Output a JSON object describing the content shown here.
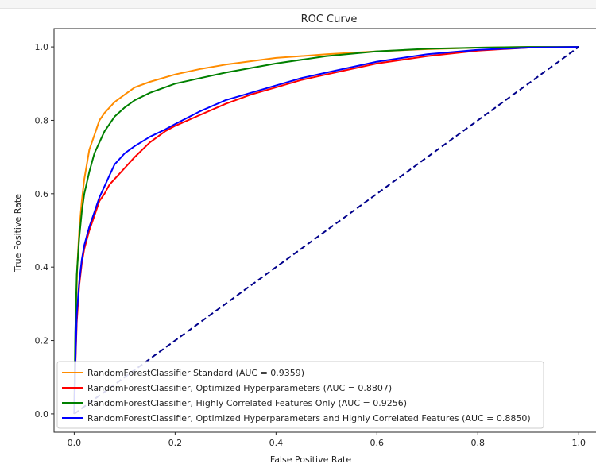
{
  "chart_data": {
    "type": "line",
    "title": "ROC Curve",
    "xlabel": "False Positive Rate",
    "ylabel": "True Positive Rate",
    "xlim": [
      -0.04,
      1.05
    ],
    "ylim": [
      -0.05,
      1.05
    ],
    "xticks": [
      "0.0",
      "0.2",
      "0.4",
      "0.6",
      "0.8",
      "1.0"
    ],
    "yticks": [
      "0.0",
      "0.2",
      "0.4",
      "0.6",
      "0.8",
      "1.0"
    ],
    "grid": false,
    "legend_position": "lower-left",
    "series": [
      {
        "name": "RandomForestClassifier Standard (AUC = 0.9359)",
        "color": "#ff8c00",
        "style": "solid",
        "x": [
          0,
          0.003,
          0.006,
          0.01,
          0.015,
          0.02,
          0.03,
          0.04,
          0.05,
          0.06,
          0.08,
          0.1,
          0.12,
          0.15,
          0.2,
          0.25,
          0.3,
          0.4,
          0.5,
          0.6,
          0.7,
          0.8,
          0.9,
          1.0
        ],
        "y": [
          0,
          0.25,
          0.4,
          0.5,
          0.58,
          0.64,
          0.72,
          0.76,
          0.8,
          0.82,
          0.85,
          0.87,
          0.89,
          0.905,
          0.925,
          0.94,
          0.952,
          0.97,
          0.98,
          0.988,
          0.994,
          0.998,
          1.0,
          1.0
        ]
      },
      {
        "name": "RandomForestClassifier, Optimized Hyperparameters (AUC = 0.8807)",
        "color": "#ff0000",
        "style": "solid",
        "x": [
          0,
          0.002,
          0.005,
          0.01,
          0.015,
          0.02,
          0.03,
          0.04,
          0.05,
          0.06,
          0.07,
          0.08,
          0.1,
          0.12,
          0.15,
          0.18,
          0.2,
          0.25,
          0.3,
          0.35,
          0.4,
          0.45,
          0.5,
          0.6,
          0.7,
          0.8,
          0.9,
          1.0
        ],
        "y": [
          0,
          0.12,
          0.25,
          0.35,
          0.41,
          0.45,
          0.5,
          0.54,
          0.58,
          0.6,
          0.625,
          0.64,
          0.67,
          0.7,
          0.74,
          0.77,
          0.785,
          0.815,
          0.845,
          0.87,
          0.89,
          0.91,
          0.925,
          0.955,
          0.975,
          0.99,
          0.998,
          1.0
        ]
      },
      {
        "name": "RandomForestClassifier, Highly Correlated Features Only (AUC = 0.9256)",
        "color": "#008000",
        "style": "solid",
        "x": [
          0,
          0.002,
          0.005,
          0.01,
          0.015,
          0.02,
          0.03,
          0.04,
          0.05,
          0.06,
          0.08,
          0.1,
          0.12,
          0.15,
          0.2,
          0.25,
          0.3,
          0.4,
          0.5,
          0.6,
          0.7,
          0.8,
          0.9,
          1.0
        ],
        "y": [
          0,
          0.22,
          0.38,
          0.48,
          0.55,
          0.6,
          0.66,
          0.71,
          0.74,
          0.77,
          0.81,
          0.835,
          0.855,
          0.875,
          0.9,
          0.915,
          0.93,
          0.955,
          0.975,
          0.988,
          0.995,
          0.998,
          1.0,
          1.0
        ]
      },
      {
        "name": "RandomForestClassifier, Optimized Hyperparameters and Highly Correlated Features (AUC = 0.8850)",
        "color": "#0000ff",
        "style": "solid",
        "x": [
          0,
          0.002,
          0.005,
          0.01,
          0.015,
          0.02,
          0.03,
          0.04,
          0.05,
          0.06,
          0.07,
          0.08,
          0.1,
          0.12,
          0.15,
          0.18,
          0.2,
          0.25,
          0.3,
          0.35,
          0.4,
          0.45,
          0.5,
          0.6,
          0.7,
          0.8,
          0.9,
          1.0
        ],
        "y": [
          0,
          0.13,
          0.27,
          0.36,
          0.42,
          0.46,
          0.51,
          0.55,
          0.59,
          0.62,
          0.65,
          0.68,
          0.71,
          0.73,
          0.755,
          0.775,
          0.79,
          0.825,
          0.855,
          0.875,
          0.895,
          0.915,
          0.93,
          0.96,
          0.98,
          0.992,
          0.998,
          1.0
        ]
      },
      {
        "name": "",
        "color": "#00008b",
        "style": "dashed",
        "x": [
          0,
          1
        ],
        "y": [
          0,
          1
        ]
      }
    ]
  }
}
